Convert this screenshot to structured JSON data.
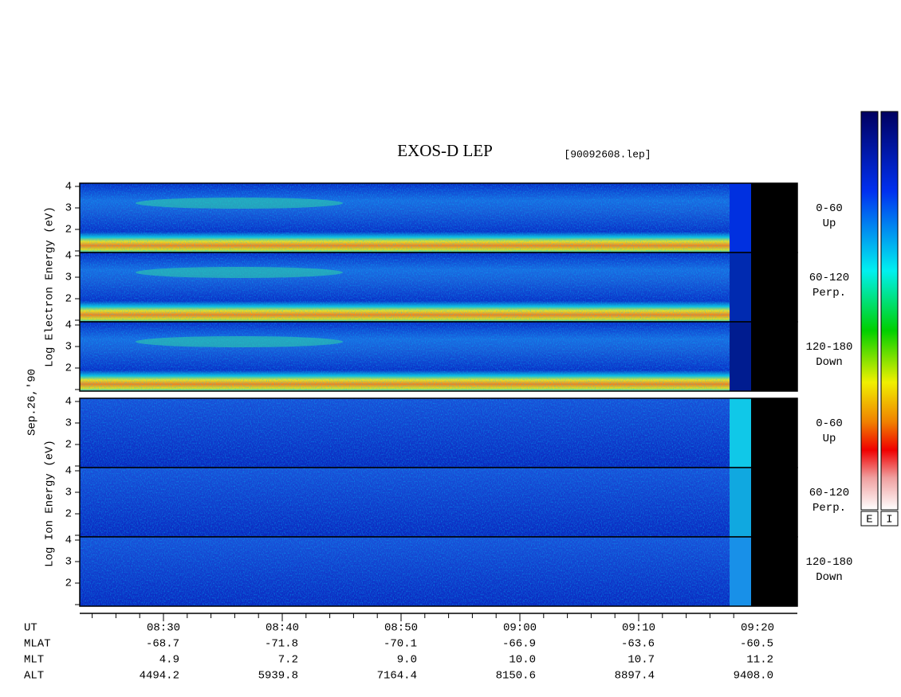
{
  "title": "EXOS-D LEP",
  "file": "[90092608.lep]",
  "date_label": "Sep.26,'90",
  "electron_axis_label": "Log Electron Energy (eV)",
  "ion_axis_label": "Log Ion Energy (eV)",
  "yticks": [
    2,
    3,
    4
  ],
  "panels": [
    {
      "label": "0-60",
      "sublabel": "Up"
    },
    {
      "label": "60-120",
      "sublabel": "Perp."
    },
    {
      "label": "120-180",
      "sublabel": "Down"
    }
  ],
  "ephemeris": [
    {
      "name": "UT",
      "values": [
        "08:30",
        "08:40",
        "08:50",
        "09:00",
        "09:10",
        "09:20"
      ]
    },
    {
      "name": "MLAT",
      "values": [
        "-68.7",
        "-71.8",
        "-70.1",
        "-66.9",
        "-63.6",
        "-60.5"
      ]
    },
    {
      "name": "MLT",
      "values": [
        "4.9",
        "7.2",
        "9.0",
        "10.0",
        "10.7",
        "11.2"
      ]
    },
    {
      "name": "ALT",
      "values": [
        "4494.2",
        "5939.8",
        "7164.4",
        "8150.6",
        "8897.4",
        "9408.0"
      ]
    }
  ],
  "colorbar_labels": [
    "E",
    "I"
  ]
}
